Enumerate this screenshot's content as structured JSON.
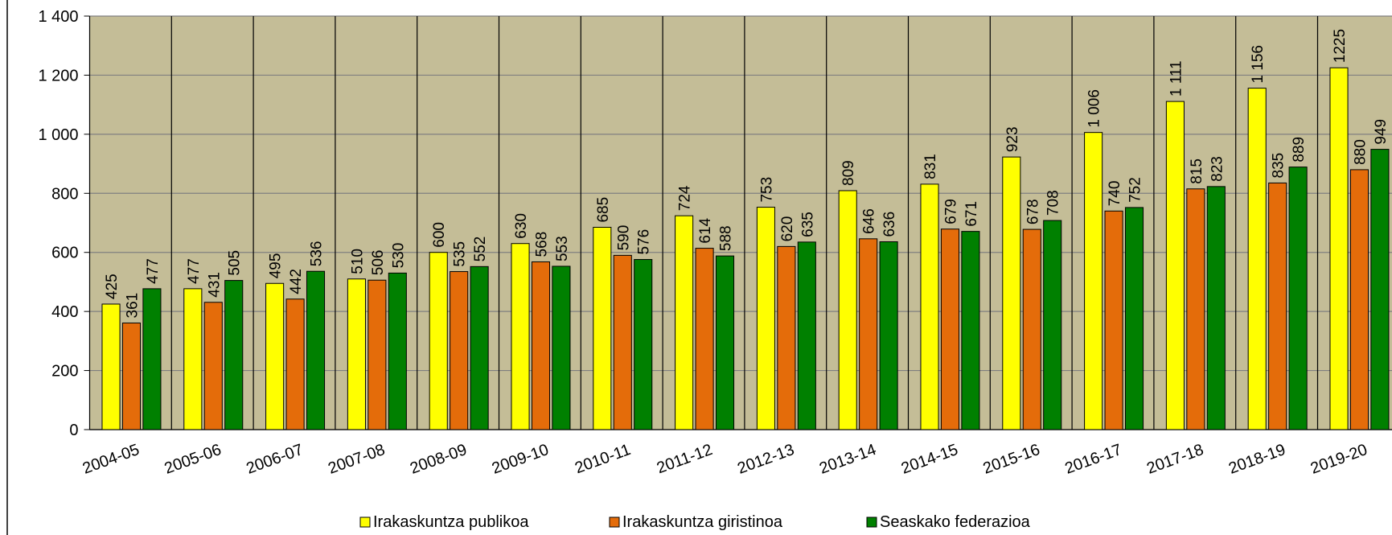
{
  "chart_data": {
    "type": "bar",
    "categories": [
      "2004-05",
      "2005-06",
      "2006-07",
      "2007-08",
      "2008-09",
      "2009-10",
      "2010-11",
      "2011-12",
      "2012-13",
      "2013-14",
      "2014-15",
      "2015-16",
      "2016-17",
      "2017-18",
      "2018-19",
      "2019-20"
    ],
    "series": [
      {
        "name": "Irakaskuntza publikoa",
        "color": "#ffff00",
        "values": [
          425,
          477,
          495,
          510,
          600,
          630,
          685,
          724,
          753,
          809,
          831,
          923,
          1006,
          1111,
          1156,
          1225
        ],
        "value_labels": [
          "425",
          "477",
          "495",
          "510",
          "600",
          "630",
          "685",
          "724",
          "753",
          "809",
          "831",
          "923",
          "1 006",
          "1 111",
          "1 156",
          "1225"
        ]
      },
      {
        "name": "Irakaskuntza giristinoa",
        "color": "#e46c0a",
        "values": [
          361,
          431,
          442,
          506,
          535,
          568,
          590,
          614,
          620,
          646,
          679,
          678,
          740,
          815,
          835,
          880
        ],
        "value_labels": [
          "361",
          "431",
          "442",
          "506",
          "535",
          "568",
          "590",
          "614",
          "620",
          "646",
          "679",
          "678",
          "740",
          "815",
          "835",
          "880"
        ]
      },
      {
        "name": "Seaskako federazioa",
        "color": "#008000",
        "values": [
          477,
          505,
          536,
          530,
          552,
          553,
          576,
          588,
          635,
          636,
          671,
          708,
          752,
          823,
          889,
          949
        ],
        "value_labels": [
          "477",
          "505",
          "536",
          "530",
          "552",
          "553",
          "576",
          "588",
          "635",
          "636",
          "671",
          "708",
          "752",
          "823",
          "889",
          "949"
        ]
      }
    ],
    "ylim": [
      0,
      1400
    ],
    "yticks": [
      0,
      200,
      400,
      600,
      800,
      {
        "value": 1000,
        "label": "1 000"
      },
      {
        "value": 1200,
        "label": "1 200"
      },
      {
        "value": 1400,
        "label": "1 400"
      }
    ],
    "grid": true,
    "legend": "bottom"
  }
}
